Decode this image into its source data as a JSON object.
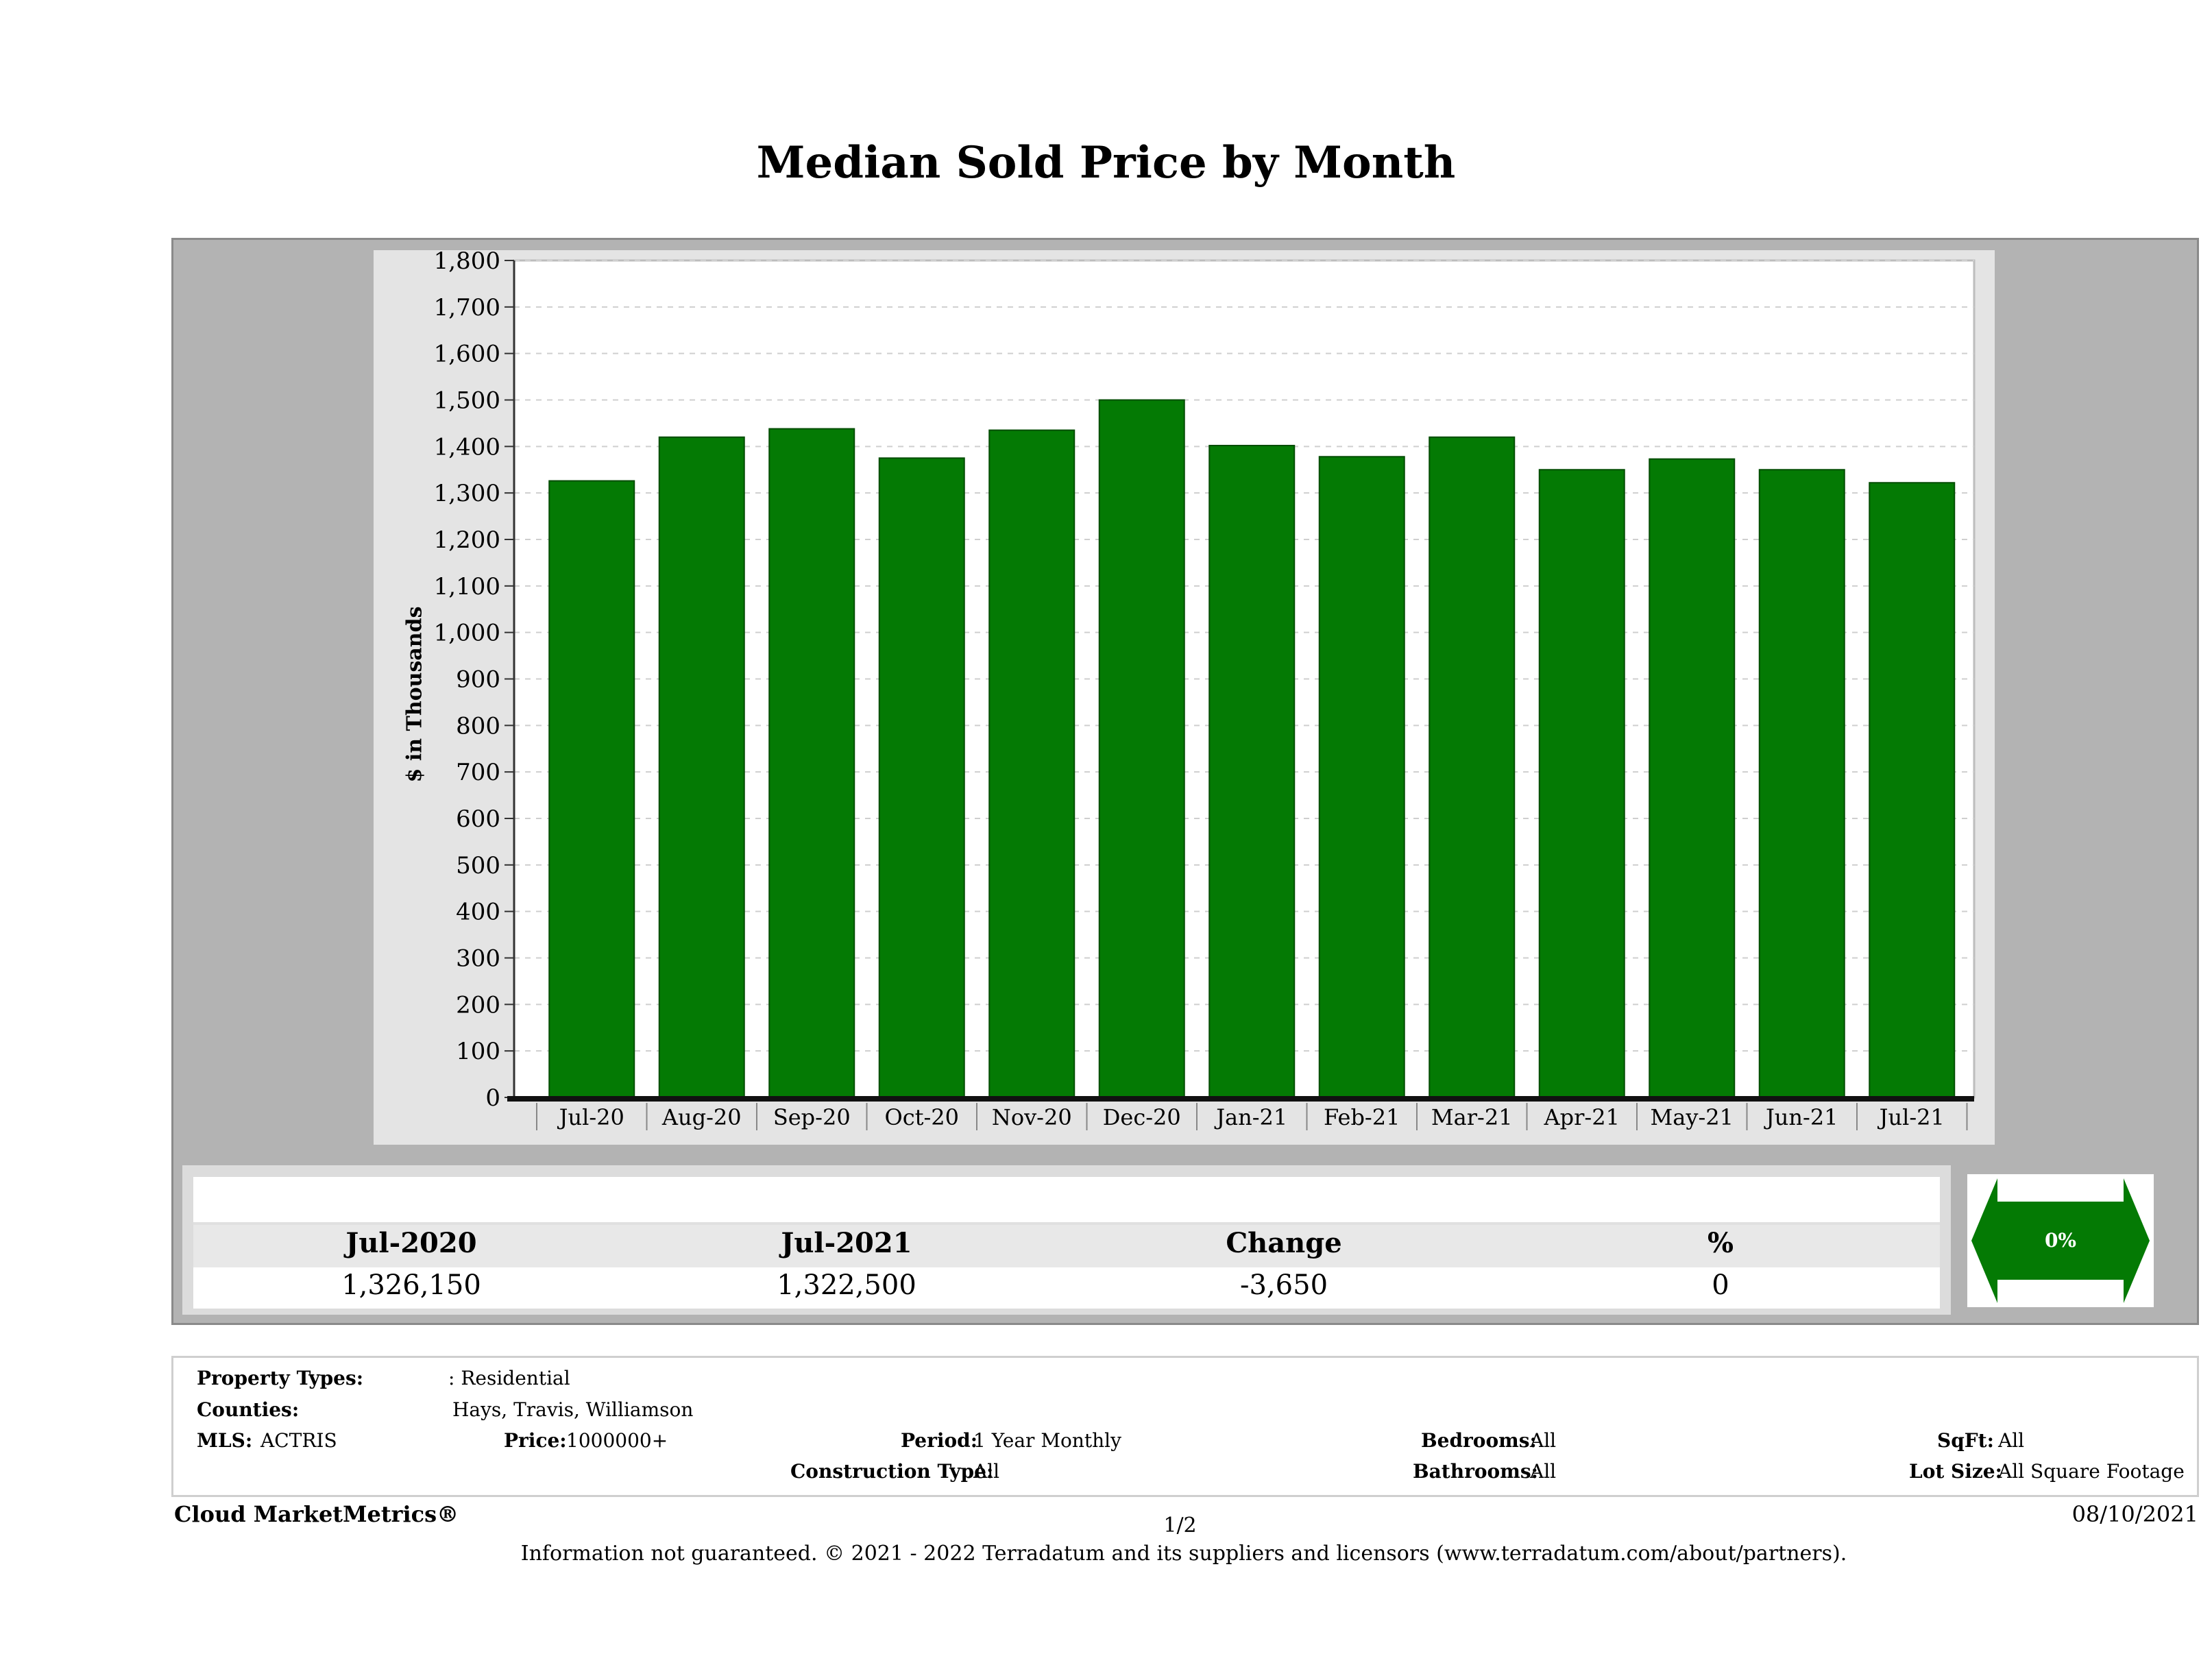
{
  "chart_data": {
    "type": "bar",
    "title": "Median Sold Price by Month",
    "ylabel": "$ in Thousands",
    "xlabel": "",
    "categories": [
      "Jul-20",
      "Aug-20",
      "Sep-20",
      "Oct-20",
      "Nov-20",
      "Dec-20",
      "Jan-21",
      "Feb-21",
      "Mar-21",
      "Apr-21",
      "May-21",
      "Jun-21",
      "Jul-21"
    ],
    "values": [
      1326,
      1420,
      1438,
      1375,
      1435,
      1500,
      1402,
      1378,
      1420,
      1350,
      1373,
      1350,
      1322
    ],
    "ylim": [
      0,
      1800
    ],
    "yticks": [
      "0",
      "100",
      "200",
      "300",
      "400",
      "500",
      "600",
      "700",
      "800",
      "900",
      "1,000",
      "1,100",
      "1,200",
      "1,300",
      "1,400",
      "1,500",
      "1,600",
      "1,700",
      "1,800"
    ],
    "grid": true,
    "bar_color": "#047a04"
  },
  "summary": {
    "headers": [
      "Jul-2020",
      "Jul-2021",
      "Change",
      "%"
    ],
    "values": [
      "1,326,150",
      "1,322,500",
      "-3,650",
      "0"
    ],
    "arrow_label": "0%",
    "arrow_icon": "double-arrow-icon",
    "arrow_color": "#047a04"
  },
  "criteria": {
    "property_types_label": "Property Types:",
    "property_types_value": ": Residential",
    "counties_label": "Counties:",
    "counties_value": "Hays, Travis, Williamson",
    "mls_label": "MLS:",
    "mls_value": "ACTRIS",
    "price_label": "Price:",
    "price_value": "1000000+",
    "period_label": "Period:",
    "period_value": "1 Year Monthly",
    "construction_label": "Construction Type:",
    "construction_value": "All",
    "bedrooms_label": "Bedrooms:",
    "bedrooms_value": "All",
    "bathrooms_label": "Bathrooms:",
    "bathrooms_value": "All",
    "sqft_label": "SqFt:",
    "sqft_value": "All",
    "lot_label": "Lot Size:",
    "lot_value": "All Square Footage"
  },
  "footer": {
    "brand": "Cloud MarketMetrics®",
    "page": "1/2",
    "date": "08/10/2021",
    "disclaimer": "Information not guaranteed. © 2021 - 2022 Terradatum and its suppliers and licensors (www.terradatum.com/about/partners)."
  }
}
